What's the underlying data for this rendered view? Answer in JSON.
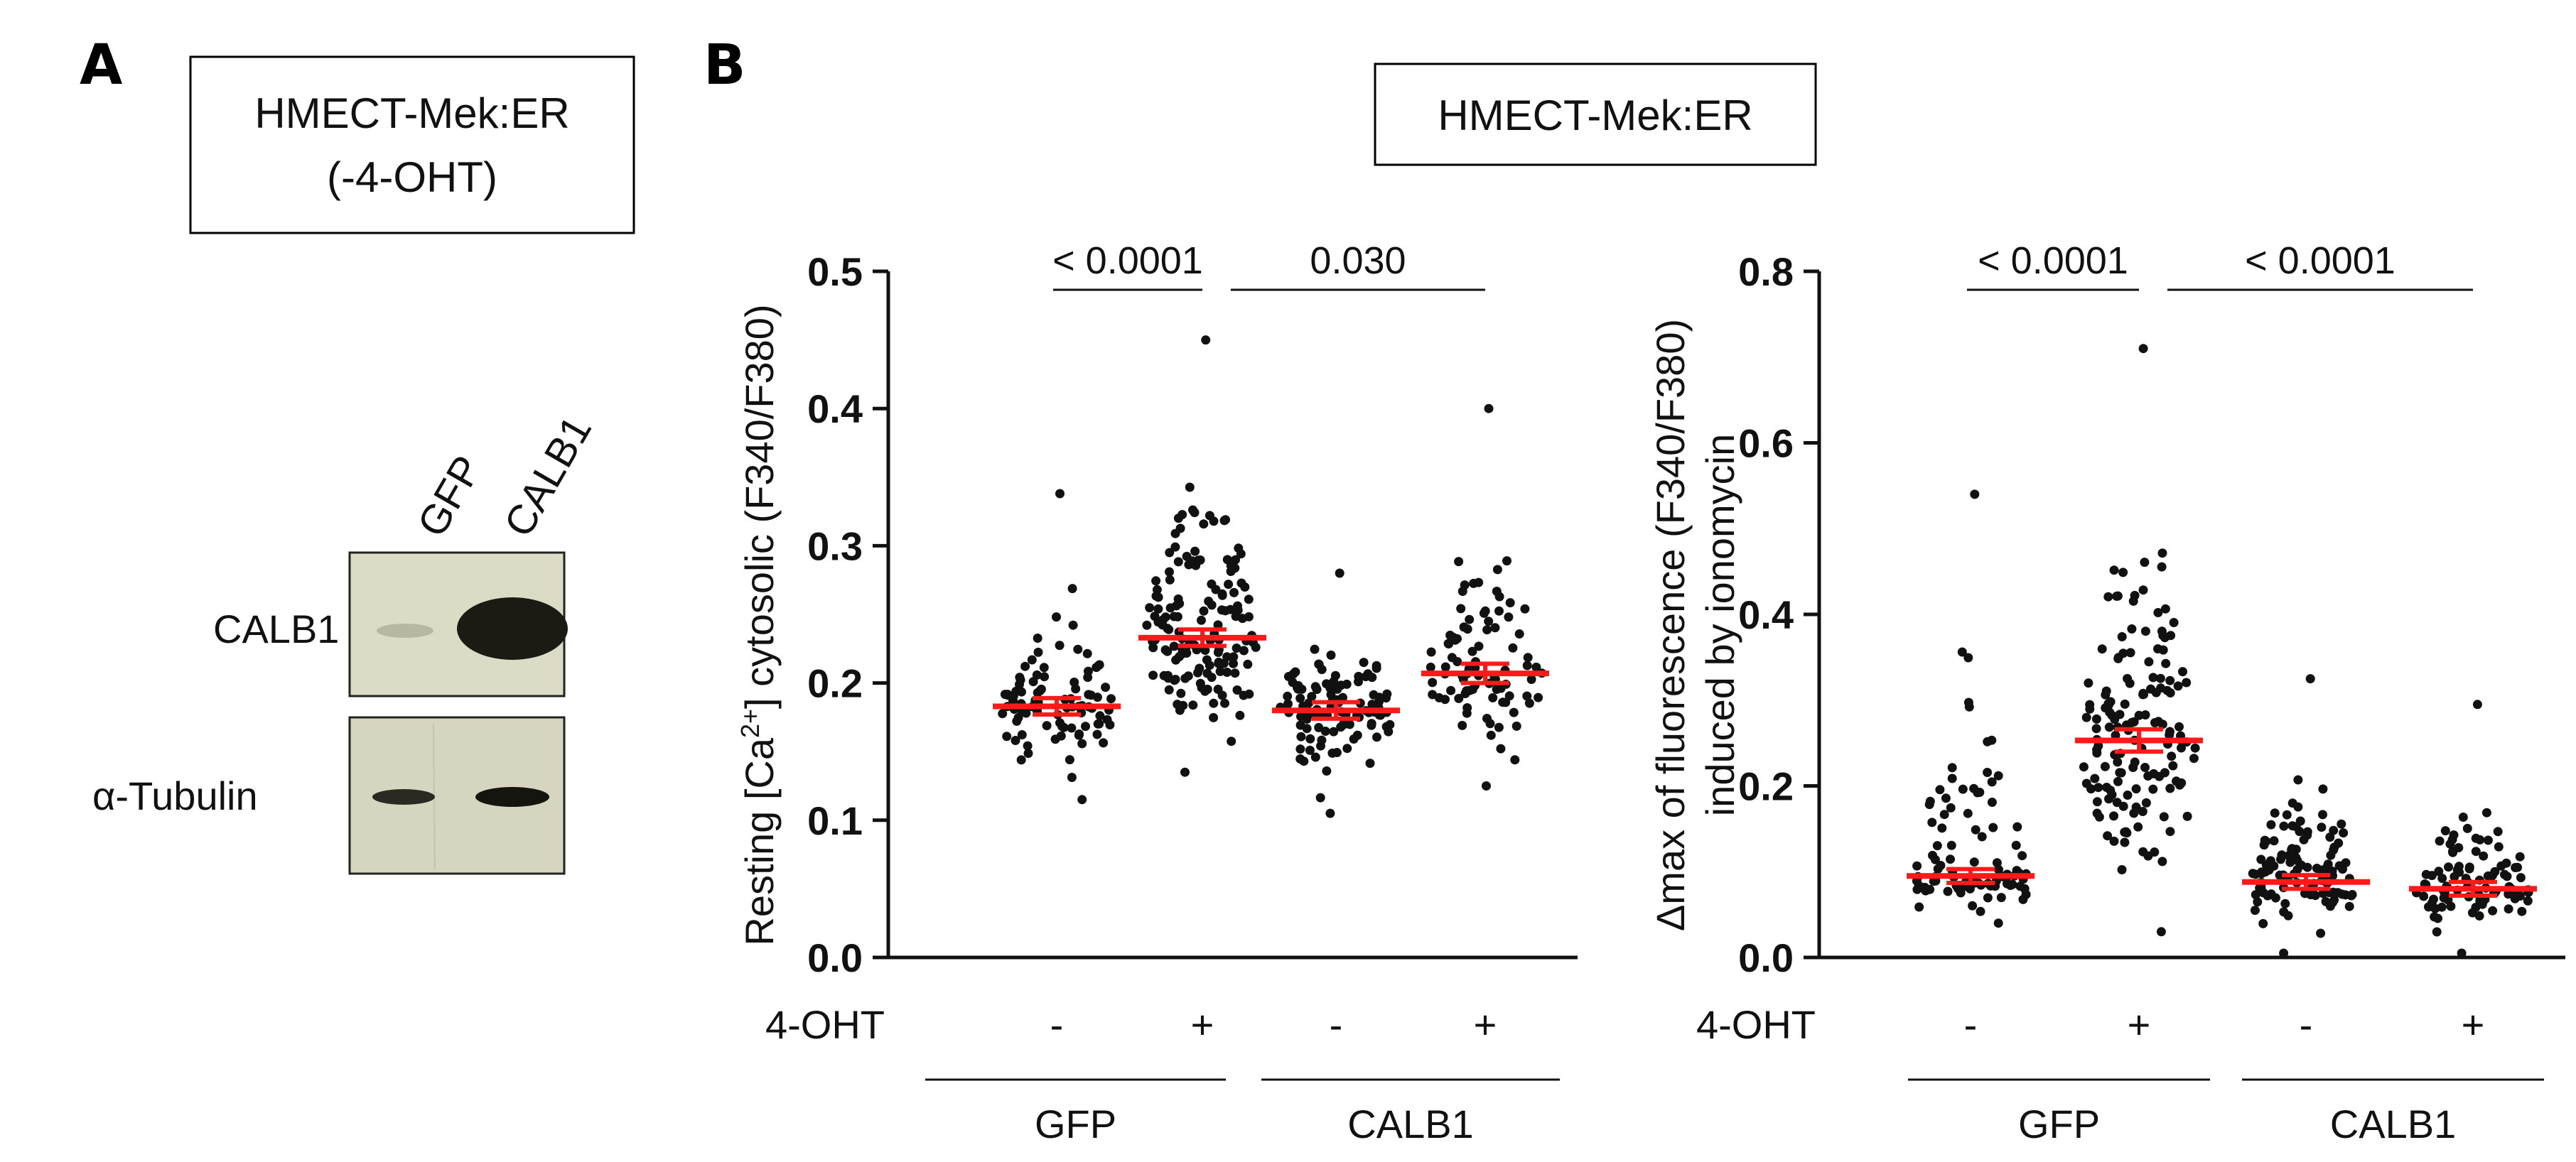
{
  "panels": {
    "A": {
      "letter": "A",
      "header_lines": [
        "HMECT-Mek:ER",
        "(-4-OHT)"
      ],
      "lane_labels": [
        "GFP",
        "CALB1"
      ],
      "row_labels": [
        "CALB1",
        "α-Tubulin"
      ]
    },
    "B": {
      "letter": "B",
      "header": "HMECT-Mek:ER"
    }
  },
  "colors": {
    "points": "#111111",
    "mean": "#ff1a1a",
    "axis": "#111111",
    "blot_bg": "#d9d9c4"
  },
  "chart_data": [
    {
      "type": "scatter",
      "subtype": "dot-strip-plot with mean ± SEM",
      "ylabel_pre": "Resting [Ca",
      "ylabel_sup": "2+",
      "ylabel_post": "] cytosolic (F340/F380)",
      "ylim": [
        0,
        0.5
      ],
      "yticks": [
        "0.0",
        "0.1",
        "0.2",
        "0.3",
        "0.4",
        "0.5"
      ],
      "row_label": "4-OHT",
      "treatment_labels": [
        "-",
        "+",
        "-",
        "+"
      ],
      "group_labels": [
        "GFP",
        "CALB1"
      ],
      "series": [
        {
          "name": "GFP -4-OHT",
          "n": 90,
          "mean": 0.183,
          "sem": 0.006,
          "min": 0.115,
          "max": 0.338
        },
        {
          "name": "GFP +4-OHT",
          "n": 150,
          "mean": 0.233,
          "sem": 0.006,
          "min": 0.135,
          "max": 0.45
        },
        {
          "name": "CALB1 -4-OHT",
          "n": 110,
          "mean": 0.18,
          "sem": 0.006,
          "min": 0.105,
          "max": 0.28
        },
        {
          "name": "CALB1 +4-OHT",
          "n": 90,
          "mean": 0.207,
          "sem": 0.007,
          "min": 0.125,
          "max": 0.4
        }
      ],
      "comparisons": [
        {
          "from": 0,
          "to": 1,
          "label": "< 0.0001"
        },
        {
          "from": 1,
          "to": 3,
          "label": "0.030"
        }
      ]
    },
    {
      "type": "scatter",
      "subtype": "dot-strip-plot with mean ± SEM",
      "ylabel_line1": "Δmax of fluorescence (F340/F380)",
      "ylabel_line2": "induced by ionomycin",
      "ylim": [
        0,
        0.8
      ],
      "yticks": [
        "0.0",
        "0.2",
        "0.4",
        "0.6",
        "0.8"
      ],
      "row_label": "4-OHT",
      "treatment_labels": [
        "-",
        "+",
        "-",
        "+"
      ],
      "group_labels": [
        "GFP",
        "CALB1"
      ],
      "series": [
        {
          "name": "GFP -4-OHT",
          "n": 95,
          "mean": 0.095,
          "sem": 0.008,
          "min": 0.04,
          "max": 0.54
        },
        {
          "name": "GFP +4-OHT",
          "n": 150,
          "mean": 0.253,
          "sem": 0.013,
          "min": 0.03,
          "max": 0.71
        },
        {
          "name": "CALB1 -4-OHT",
          "n": 115,
          "mean": 0.088,
          "sem": 0.008,
          "min": 0.005,
          "max": 0.325
        },
        {
          "name": "CALB1 +4-OHT",
          "n": 95,
          "mean": 0.08,
          "sem": 0.008,
          "min": 0.005,
          "max": 0.295
        }
      ],
      "comparisons": [
        {
          "from": 0,
          "to": 1,
          "label": "< 0.0001"
        },
        {
          "from": 1,
          "to": 3,
          "label": "< 0.0001"
        }
      ]
    }
  ]
}
